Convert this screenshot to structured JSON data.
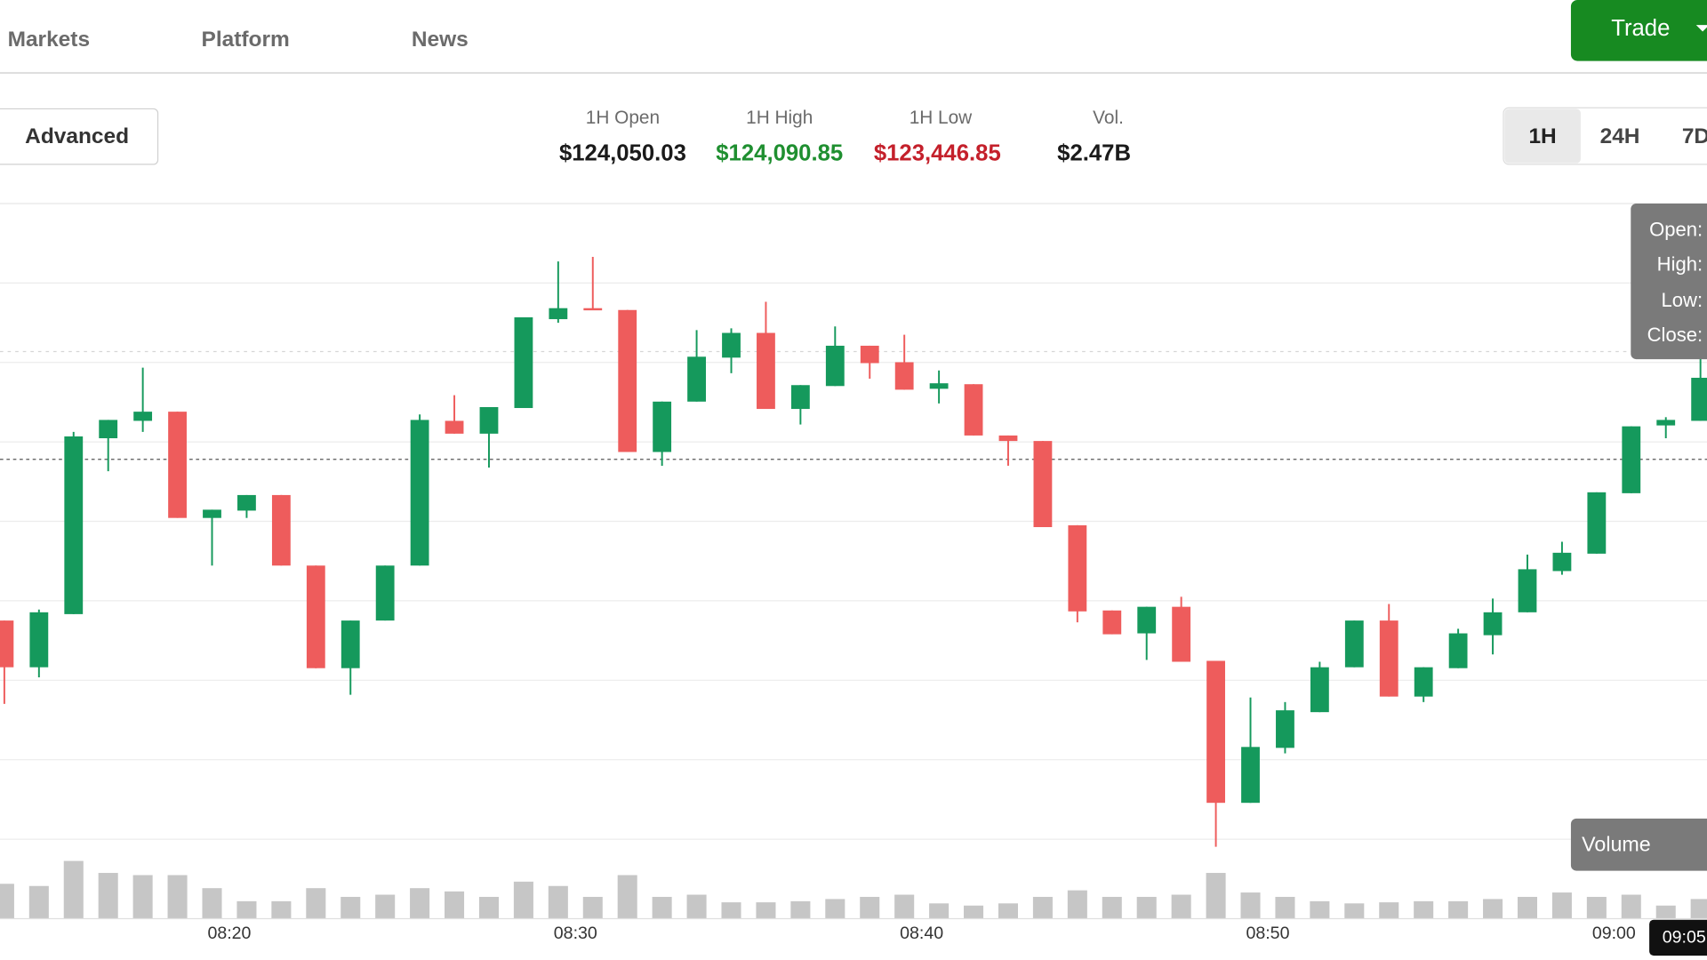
{
  "nav": {
    "items": [
      "Markets",
      "Platform",
      "News"
    ],
    "trade_button": "Trade"
  },
  "toolbar": {
    "advanced": "Advanced",
    "stats": [
      {
        "label": "1H Open",
        "value": "$124,050.03"
      },
      {
        "label": "1H High",
        "value": "$124,090.85"
      },
      {
        "label": "1H Low",
        "value": "$123,446.85"
      },
      {
        "label": "Vol.",
        "value": "$2.47B"
      }
    ],
    "ranges": [
      "1H",
      "24H",
      "7D"
    ]
  },
  "chart_data": {
    "type": "candlestick",
    "categories": [
      null,
      null,
      null,
      null,
      null,
      null,
      "08:20",
      null,
      null,
      null,
      null,
      null,
      null,
      null,
      null,
      null,
      "08:30",
      null,
      null,
      null,
      null,
      null,
      null,
      null,
      null,
      null,
      "08:40",
      null,
      null,
      null,
      null,
      null,
      null,
      null,
      null,
      null,
      "08:50",
      null,
      null,
      null,
      null,
      null,
      null,
      null,
      null,
      null,
      "09:00",
      null,
      null,
      null
    ],
    "open": [
      123694,
      123643,
      123701,
      123893,
      123912,
      123922,
      123806,
      123814,
      123831,
      123754,
      123642,
      123694,
      123754,
      123912,
      123898,
      123926,
      124023,
      124035,
      124033,
      123878,
      123933,
      123981,
      124008,
      123925,
      123950,
      123994,
      123976,
      123947,
      123952,
      123896,
      123890,
      123798,
      123705,
      123680,
      123709,
      123650,
      123495,
      123555,
      123594,
      123643,
      123694,
      123611,
      123642,
      123678,
      123703,
      123748,
      123767,
      123833,
      123907,
      123912
    ],
    "high": [
      123694,
      123706,
      123900,
      123913,
      123970,
      123922,
      123815,
      123831,
      123831,
      123754,
      123694,
      123754,
      123919,
      123940,
      123927,
      124025,
      124086,
      124091,
      124033,
      123933,
      124011,
      124013,
      124042,
      123951,
      124015,
      123994,
      124006,
      123967,
      123952,
      123896,
      123890,
      123798,
      123705,
      123709,
      123720,
      123650,
      123610,
      123605,
      123649,
      123694,
      123712,
      123643,
      123685,
      123718,
      123766,
      123780,
      123834,
      123906,
      123916,
      124015
    ],
    "low": [
      123603,
      123632,
      123701,
      123857,
      123900,
      123806,
      123754,
      123806,
      123754,
      123642,
      123613,
      123694,
      123754,
      123898,
      123861,
      123926,
      124019,
      124033,
      123878,
      123863,
      123933,
      123964,
      123925,
      123908,
      123950,
      123958,
      123946,
      123931,
      123896,
      123863,
      123796,
      123692,
      123679,
      123651,
      123649,
      123447,
      123495,
      123549,
      123594,
      123643,
      123611,
      123605,
      123642,
      123657,
      123703,
      123744,
      123767,
      123833,
      123893,
      123912
    ],
    "close": [
      123643,
      123703,
      123895,
      123913,
      123922,
      123806,
      123815,
      123831,
      123754,
      123642,
      123694,
      123754,
      123913,
      123898,
      123927,
      124025,
      124035,
      124033,
      123878,
      123933,
      123982,
      124008,
      123925,
      123951,
      123994,
      123975,
      123946,
      123953,
      123896,
      123890,
      123796,
      123704,
      123679,
      123709,
      123649,
      123495,
      123556,
      123596,
      123643,
      123694,
      123611,
      123643,
      123680,
      123703,
      123750,
      123768,
      123834,
      123906,
      123913,
      123959
    ],
    "volume": [
      32,
      30,
      53,
      42,
      40,
      40,
      28,
      16,
      16,
      28,
      20,
      22,
      28,
      25,
      20,
      34,
      30,
      20,
      40,
      20,
      22,
      15,
      15,
      16,
      18,
      20,
      22,
      14,
      12,
      14,
      20,
      26,
      20,
      20,
      22,
      42,
      24,
      20,
      16,
      14,
      15,
      16,
      16,
      18,
      20,
      24,
      20,
      22,
      12,
      18
    ],
    "up_color": "#15995c",
    "down_color": "#ee5c5c",
    "volume_color": "#c6c6c6",
    "tooltip_labels": [
      "Open:",
      "High:",
      "Low:",
      "Close:"
    ],
    "volume_label": "Volume",
    "crosshair_time": "09:05"
  }
}
